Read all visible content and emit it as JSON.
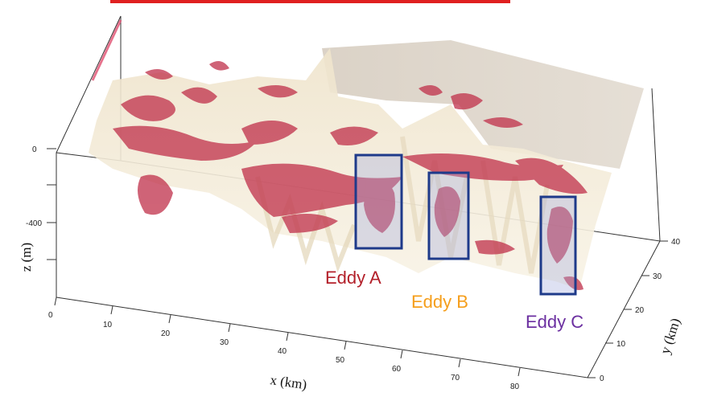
{
  "figure": {
    "z_axis": {
      "label": "z (m)",
      "ticks": [
        "0",
        "-400"
      ]
    },
    "x_axis": {
      "label": "x (km)",
      "ticks": [
        "0",
        "10",
        "20",
        "30",
        "40",
        "50",
        "60",
        "70",
        "80"
      ]
    },
    "y_axis": {
      "label": "y (km)",
      "ticks": [
        "0",
        "10",
        "20",
        "30",
        "40"
      ]
    },
    "eddies": [
      {
        "label": "Eddy A",
        "color": "#b3202a"
      },
      {
        "label": "Eddy B",
        "color": "#f59e1b"
      },
      {
        "label": "Eddy C",
        "color": "#6b2fa0"
      }
    ],
    "colors": {
      "surface": "#efe6d0",
      "isosurface": "#c0304a",
      "box_stroke": "#1e3a8a",
      "top_bar": "#e02020"
    }
  }
}
